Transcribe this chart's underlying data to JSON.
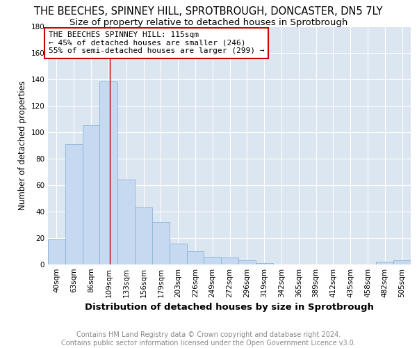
{
  "title": "THE BEECHES, SPINNEY HILL, SPROTBROUGH, DONCASTER, DN5 7LY",
  "subtitle": "Size of property relative to detached houses in Sprotbrough",
  "xlabel": "Distribution of detached houses by size in Sprotbrough",
  "ylabel": "Number of detached properties",
  "bar_color": "#c6d9f0",
  "bar_edge_color": "#8ab4d8",
  "plot_bg_color": "#dce6f1",
  "annotation_line_color": "#cc0000",
  "annotation_box_color": "#cc0000",
  "annotation_text": "THE BEECHES SPINNEY HILL: 115sqm\n← 45% of detached houses are smaller (246)\n55% of semi-detached houses are larger (299) →",
  "vline_x": 109,
  "categories": [
    "40sqm",
    "63sqm",
    "86sqm",
    "109sqm",
    "133sqm",
    "156sqm",
    "179sqm",
    "203sqm",
    "226sqm",
    "249sqm",
    "272sqm",
    "296sqm",
    "319sqm",
    "342sqm",
    "365sqm",
    "389sqm",
    "412sqm",
    "435sqm",
    "458sqm",
    "482sqm",
    "505sqm"
  ],
  "bin_edges": [
    26.5,
    49.5,
    72.5,
    95.5,
    119.5,
    142.5,
    165.5,
    188.5,
    211.5,
    234.5,
    257.5,
    280.5,
    303.5,
    326.5,
    349.5,
    372.5,
    395.5,
    418.5,
    441.5,
    464.5,
    487.5,
    510.5
  ],
  "values": [
    19,
    91,
    105,
    138,
    64,
    43,
    32,
    16,
    10,
    6,
    5,
    3,
    1,
    0,
    0,
    0,
    0,
    0,
    0,
    2,
    3
  ],
  "ylim": [
    0,
    180
  ],
  "yticks": [
    0,
    20,
    40,
    60,
    80,
    100,
    120,
    140,
    160,
    180
  ],
  "footer_text": "Contains HM Land Registry data © Crown copyright and database right 2024.\nContains public sector information licensed under the Open Government Licence v3.0.",
  "title_fontsize": 10.5,
  "subtitle_fontsize": 9.5,
  "ylabel_fontsize": 8.5,
  "xlabel_fontsize": 9.5,
  "tick_fontsize": 7.5,
  "annotation_fontsize": 8,
  "footer_fontsize": 7
}
